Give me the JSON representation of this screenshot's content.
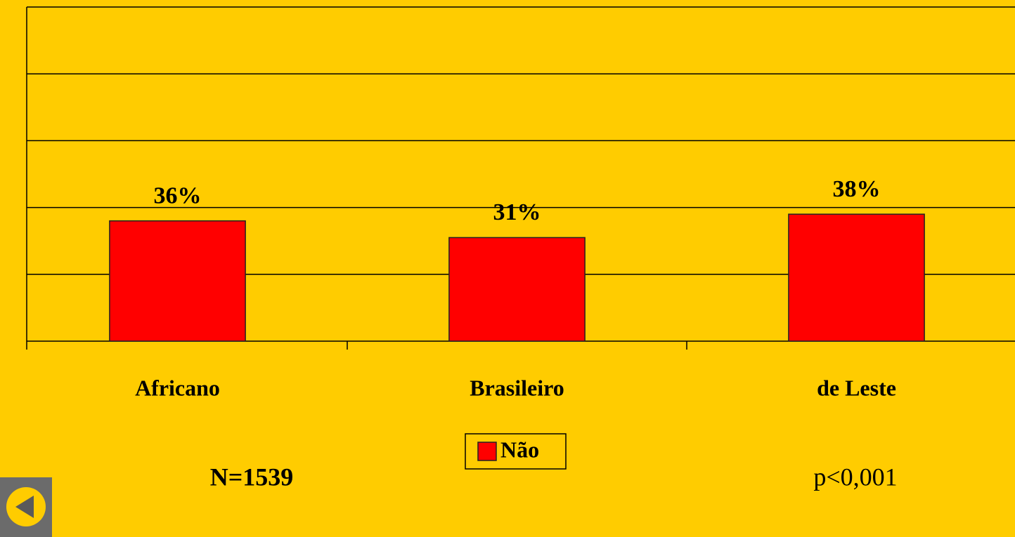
{
  "chart_data": {
    "type": "bar",
    "categories": [
      "Africano",
      "Brasileiro",
      "de Leste"
    ],
    "series": [
      {
        "name": "Não",
        "color": "#ff0000",
        "values": [
          36,
          31,
          38
        ],
        "value_labels": [
          "36%",
          "31%",
          "38%"
        ]
      }
    ],
    "ylim": [
      0,
      100
    ],
    "yticks": [
      0,
      20,
      40,
      60,
      80,
      100
    ],
    "grid": true,
    "annotations": [
      "N=1539",
      "p<0,001"
    ]
  }
}
